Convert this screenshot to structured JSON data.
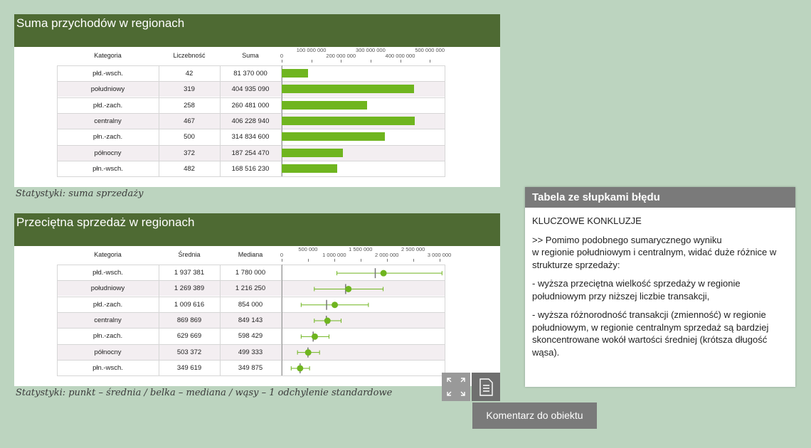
{
  "panels": [
    {
      "title": "Suma przychodów w regionach",
      "caption": "Statystyki: suma sprzedaży",
      "headers": [
        "Kategoria",
        "Liczebność",
        "Suma"
      ],
      "axis_ticks": [
        "0",
        "100 000 000",
        "200 000 000",
        "300 000 000",
        "400 000 000",
        "500 000 000"
      ],
      "rows": [
        {
          "category": "płd.-wsch.",
          "count": "42",
          "sum": "81 370 000"
        },
        {
          "category": "południowy",
          "count": "319",
          "sum": "404 935 090"
        },
        {
          "category": "płd.-zach.",
          "count": "258",
          "sum": "260 481 000"
        },
        {
          "category": "centralny",
          "count": "467",
          "sum": "406 228 940"
        },
        {
          "category": "płn.-zach.",
          "count": "500",
          "sum": "314 834 600"
        },
        {
          "category": "północny",
          "count": "372",
          "sum": "187 254 470"
        },
        {
          "category": "płn.-wsch.",
          "count": "482",
          "sum": "168 516 230"
        }
      ]
    },
    {
      "title": "Przeciętna sprzedaż w regionach",
      "caption": "Statystyki: punkt – średnia / belka – mediana / wąsy – 1 odchylenie standardowe",
      "headers": [
        "Kategoria",
        "Średnia",
        "Mediana"
      ],
      "axis_ticks": [
        "0",
        "500 000",
        "1 000 000",
        "1 500 000",
        "2 000 000",
        "2 500 000",
        "3 000 000"
      ],
      "rows": [
        {
          "category": "płd.-wsch.",
          "mean": "1 937 381",
          "median": "1 780 000"
        },
        {
          "category": "południowy",
          "mean": "1 269 389",
          "median": "1 216 250"
        },
        {
          "category": "płd.-zach.",
          "mean": "1 009 616",
          "median": "854 000"
        },
        {
          "category": "centralny",
          "mean": "869 869",
          "median": "849 143"
        },
        {
          "category": "płn.-zach.",
          "mean": "629 669",
          "median": "598 429"
        },
        {
          "category": "północny",
          "mean": "503 372",
          "median": "499 333"
        },
        {
          "category": "płn.-wsch.",
          "mean": "349 619",
          "median": "349 875"
        }
      ]
    }
  ],
  "chart_data": [
    {
      "type": "bar",
      "categories": [
        "płd.-wsch.",
        "południowy",
        "płd.-zach.",
        "centralny",
        "płn.-zach.",
        "północny",
        "płn.-wsch."
      ],
      "values": [
        81370000,
        404935090,
        260481000,
        406228940,
        314834600,
        187254470,
        168516230
      ],
      "xlim": [
        0,
        550000000
      ],
      "color": "#6fb51f"
    },
    {
      "type": "scatter",
      "categories": [
        "płd.-wsch.",
        "południowy",
        "płd.-zach.",
        "centralny",
        "płn.-zach.",
        "północny",
        "płn.-wsch."
      ],
      "mean": [
        1937381,
        1269389,
        1009616,
        869869,
        629669,
        503372,
        349619
      ],
      "median": [
        1780000,
        1216250,
        854000,
        849143,
        598429,
        499333,
        349875
      ],
      "err_low": [
        1050000,
        620000,
        370000,
        620000,
        370000,
        300000,
        180000
      ],
      "err_high": [
        3050000,
        1930000,
        1650000,
        1130000,
        900000,
        720000,
        530000
      ],
      "xlim": [
        0,
        3100000
      ],
      "color": "#6fb51f"
    }
  ],
  "comment": {
    "title": "Tabela ze słupkami błędu",
    "heading": "KLUCZOWE KONKLUZJE",
    "paragraphs": [
      ">> Pomimo podobnego sumarycznego wyniku\nw regionie południowym i centralnym, widać duże różnice w strukturze sprzedaży:",
      "- wyższa przeciętna wielkość sprzedaży w regionie południowym przy niższej liczbie transakcji,",
      "- wyższa różnorodność transakcji (zmienność) w regionie południowym, w regionie centralnym sprzedaż są bardziej skoncentrowane wokół wartości średniej (krótsza długość wąsa)."
    ]
  },
  "buttons": {
    "comment_label": "Komentarz do obiektu",
    "expand_icon": "expand-icon",
    "document_icon": "document-icon"
  }
}
